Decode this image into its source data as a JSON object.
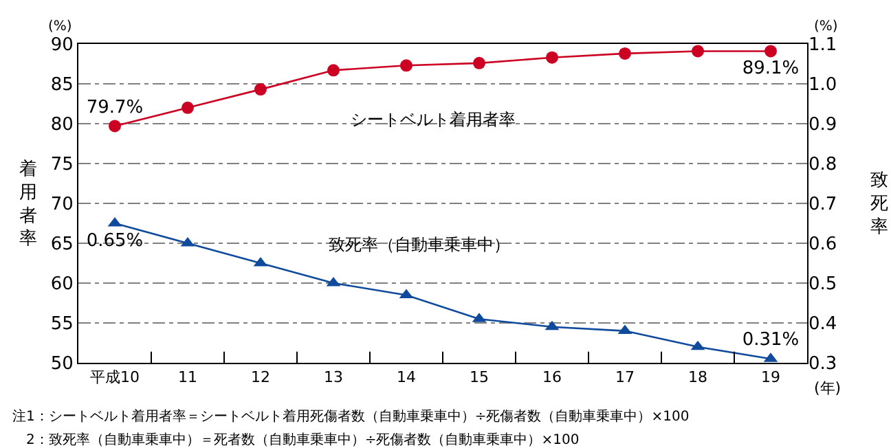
{
  "chart_data": {
    "type": "line",
    "categories": [
      "平成10",
      "11",
      "12",
      "13",
      "14",
      "15",
      "16",
      "17",
      "18",
      "19"
    ],
    "series": [
      {
        "name": "シートベルト着用者率",
        "color": "#cc0022",
        "marker": "circle",
        "values": [
          79.7,
          82.0,
          84.3,
          86.7,
          87.3,
          87.6,
          88.3,
          88.8,
          89.1,
          89.1
        ],
        "value_labels": [
          "79.7%",
          null,
          null,
          null,
          null,
          null,
          null,
          null,
          null,
          "89.1%"
        ]
      },
      {
        "name": "致死率（自動車乗車中）",
        "color": "#104a9c",
        "marker": "triangle",
        "axis": "y2",
        "values": [
          0.65,
          0.6,
          0.55,
          0.5,
          0.47,
          0.41,
          0.39,
          0.38,
          0.34,
          0.31
        ],
        "value_labels": [
          "0.65%",
          null,
          null,
          null,
          null,
          null,
          null,
          null,
          null,
          "0.31%"
        ]
      }
    ],
    "xlabel": "(年)",
    "ylabel": "着用者率",
    "y2label": "致死率",
    "ylim": [
      50,
      90
    ],
    "yticks": [
      50,
      55,
      60,
      65,
      70,
      75,
      80,
      85,
      90
    ],
    "y2lim": [
      0.3,
      1.1
    ],
    "y2ticks": [
      {
        "value": 0.3,
        "label": "0.3"
      },
      {
        "value": 0.4,
        "label": "0.4"
      },
      {
        "value": 0.5,
        "label": "0.5"
      },
      {
        "value": 0.6,
        "label": "0.6"
      },
      {
        "value": 0.7,
        "label": "0.7"
      },
      {
        "value": 0.8,
        "label": "0.8"
      },
      {
        "value": 0.9,
        "label": "0.9"
      },
      {
        "value": 1.0,
        "label": "1.0"
      },
      {
        "value": 1.1,
        "label": "1.1"
      }
    ],
    "grid": "y",
    "legend": false,
    "line_style": "solid",
    "annotations": [
      "(%)",
      "(%)",
      "注1：シートベルト着用者率＝シートベルト着用死傷者数（自動車乗車中）÷死傷者数（自動車乗車中）×100",
      "　2：致死率（自動車乗車中）＝死者数（自動車乗車中）÷死傷者数（自動車乗車中）×100"
    ]
  }
}
